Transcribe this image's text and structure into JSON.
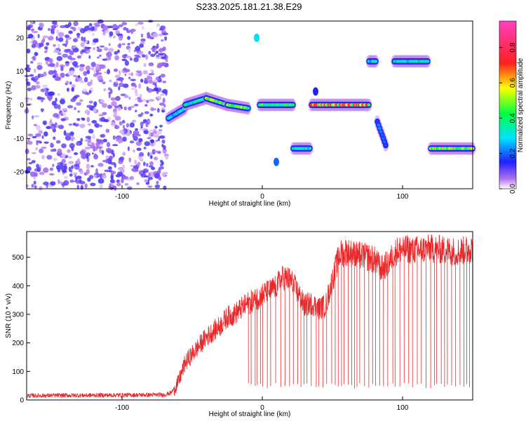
{
  "figure": {
    "title": "S233.2025.181.21.38.E29"
  },
  "chart_data": [
    {
      "type": "heatmap",
      "xlabel": "Height of straight line (km)",
      "ylabel": "Frequency (Hz)",
      "xlim": [
        -168,
        150
      ],
      "ylim": [
        -25,
        25
      ],
      "xticks": [
        -100,
        0,
        100
      ],
      "yticks": [
        -20,
        -10,
        0,
        10,
        20
      ],
      "colorbar": {
        "label": "Normalized spectral amplitude",
        "range": [
          0,
          0.95
        ],
        "ticks": [
          0,
          0.2,
          0.4,
          0.6,
          0.8
        ],
        "colormap": "purple-blue-cyan-green-yellow-red-magenta"
      },
      "noise_region_x": [
        -168,
        -68
      ],
      "segments": [
        {
          "x": [
            -67,
            -55
          ],
          "freq": [
            -4,
            -1
          ],
          "amp": 0.35
        },
        {
          "x": [
            -55,
            -40
          ],
          "freq": [
            0,
            2
          ],
          "amp": 0.45
        },
        {
          "x": [
            -40,
            -25
          ],
          "freq": [
            2,
            0
          ],
          "amp": 0.6
        },
        {
          "x": [
            -25,
            -10
          ],
          "freq": [
            0,
            -1
          ],
          "amp": 0.55
        },
        {
          "x": [
            -2,
            22
          ],
          "freq": [
            0,
            0
          ],
          "amp": 0.5
        },
        {
          "x": [
            22,
            34
          ],
          "freq": [
            -13,
            -13
          ],
          "amp": 0.4
        },
        {
          "x": [
            35,
            76
          ],
          "freq": [
            0,
            0
          ],
          "amp": 0.8
        },
        {
          "x": [
            76,
            81
          ],
          "freq": [
            13,
            13
          ],
          "amp": 0.35
        },
        {
          "x": [
            82,
            88
          ],
          "freq": [
            -5,
            -12
          ],
          "amp": 0.3
        },
        {
          "x": [
            94,
            118
          ],
          "freq": [
            13,
            13
          ],
          "amp": 0.4
        },
        {
          "x": [
            120,
            150
          ],
          "freq": [
            -13,
            -13
          ],
          "amp": 0.6
        }
      ],
      "spots": [
        {
          "x": -4,
          "freq": 20,
          "amp": 0.3
        },
        {
          "x": 10,
          "freq": -17,
          "amp": 0.2
        },
        {
          "x": 38,
          "freq": 4,
          "amp": 0.15
        }
      ]
    },
    {
      "type": "line",
      "xlabel": "Height of straight line (km)",
      "ylabel": "SNR (10 * v/v)",
      "xlim": [
        -168,
        150
      ],
      "ylim": [
        0,
        590
      ],
      "xticks": [
        -100,
        0,
        100
      ],
      "yticks": [
        0,
        100,
        200,
        300,
        400,
        500
      ],
      "color": "#e8292b",
      "series": [
        {
          "envelope": {
            "x": [
              -168,
              -70,
              -65,
              -60,
              -55,
              -50,
              -45,
              -40,
              -35,
              -30,
              -25,
              -20,
              -15,
              -10,
              -5,
              0,
              5,
              10,
              15,
              20,
              25,
              30,
              35,
              40,
              45,
              50,
              55,
              60,
              65,
              70,
              75,
              80,
              85,
              90,
              95,
              100,
              110,
              120,
              130,
              140,
              150
            ],
            "y": [
              15,
              18,
              25,
              60,
              130,
              160,
              190,
              220,
              240,
              260,
              290,
              300,
              320,
              340,
              350,
              370,
              380,
              400,
              430,
              420,
              380,
              330,
              340,
              320,
              330,
              420,
              510,
              520,
              510,
              505,
              500,
              490,
              460,
              480,
              520,
              530,
              525,
              530,
              525,
              520,
              530
            ]
          },
          "noise_amplitude": 25,
          "dropouts": {
            "x_start": -10,
            "spacing_km": 2.6,
            "min_value": 40
          }
        }
      ]
    }
  ]
}
